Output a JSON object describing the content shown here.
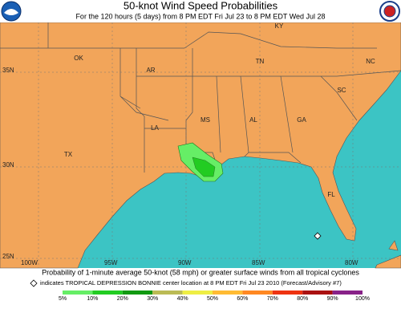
{
  "header": {
    "title": "50-knot Wind Speed Probabilities",
    "subtitle": "For the 120 hours (5 days) from 8 PM EDT Fri Jul 23 to 8 PM EDT Wed Jul 28"
  },
  "map": {
    "states": [
      "KY",
      "OK",
      "AR",
      "TN",
      "NC",
      "SC",
      "MS",
      "AL",
      "GA",
      "LA",
      "TX",
      "FL"
    ],
    "latitudes": [
      "35N",
      "30N",
      "25N"
    ],
    "longitudes": [
      "100W",
      "95W",
      "90W",
      "85W",
      "80W"
    ]
  },
  "footer": {
    "caption": "Probability of 1-minute average 50-knot (58 mph) or greater surface winds from all tropical cyclones",
    "marker_note": "indicates TROPICAL DEPRESSION BONNIE center location at 8 PM EDT Fri Jul 23 2010 (Forecast/Advisory #7)"
  },
  "legend": {
    "labels": [
      "5%",
      "10%",
      "20%",
      "30%",
      "40%",
      "50%",
      "60%",
      "70%",
      "80%",
      "90%",
      "100%"
    ],
    "colors": [
      "#66ee66",
      "#22cc22",
      "#119911",
      "#bbbb55",
      "#eeee44",
      "#ffbb33",
      "#ff8822",
      "#ee3311",
      "#aa1111",
      "#882288"
    ]
  }
}
